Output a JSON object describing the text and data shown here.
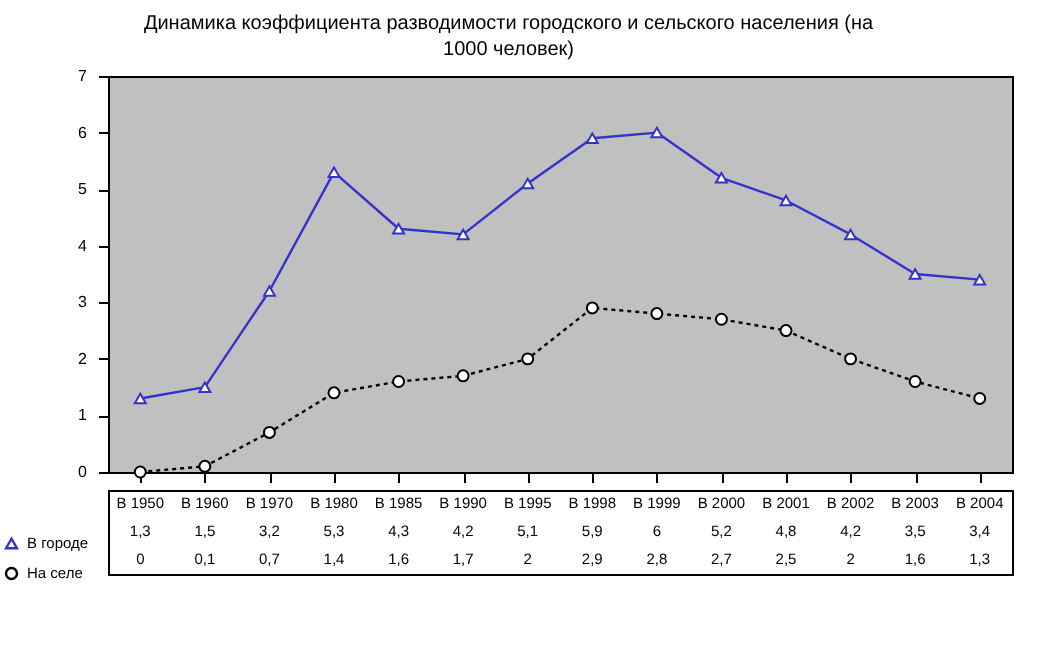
{
  "chart_data": {
    "type": "line",
    "title": "Динамика коэффициента разводимости городского и сельского населения (на 1000 человек)",
    "categories": [
      "В 1950",
      "В 1960",
      "В 1970",
      "В 1980",
      "В 1985",
      "В 1990",
      "В 1995",
      "В 1998",
      "В 1999",
      "В 2000",
      "В 2001",
      "В 2002",
      "В 2003",
      "В 2004"
    ],
    "series": [
      {
        "name": "В городе",
        "color": "#3333cc",
        "marker": "triangle",
        "line_style": "solid",
        "values": [
          1.3,
          1.5,
          3.2,
          5.3,
          4.3,
          4.2,
          5.1,
          5.9,
          6,
          5.2,
          4.8,
          4.2,
          3.5,
          3.4
        ],
        "value_labels": [
          "1,3",
          "1,5",
          "3,2",
          "5,3",
          "4,3",
          "4,2",
          "5,1",
          "5,9",
          "6",
          "5,2",
          "4,8",
          "4,2",
          "3,5",
          "3,4"
        ]
      },
      {
        "name": "На селе",
        "color": "#000000",
        "marker": "circle",
        "line_style": "dotted",
        "values": [
          0,
          0.1,
          0.7,
          1.4,
          1.6,
          1.7,
          2,
          2.9,
          2.8,
          2.7,
          2.5,
          2,
          1.6,
          1.3
        ],
        "value_labels": [
          "0",
          "0,1",
          "0,7",
          "1,4",
          "1,6",
          "1,7",
          "2",
          "2,9",
          "2,8",
          "2,7",
          "2,5",
          "2",
          "1,6",
          "1,3"
        ]
      }
    ],
    "ylim": [
      0,
      7
    ],
    "yticks": [
      0,
      1,
      2,
      3,
      4,
      5,
      6,
      7
    ],
    "grid": false,
    "legend": "bottom left"
  }
}
